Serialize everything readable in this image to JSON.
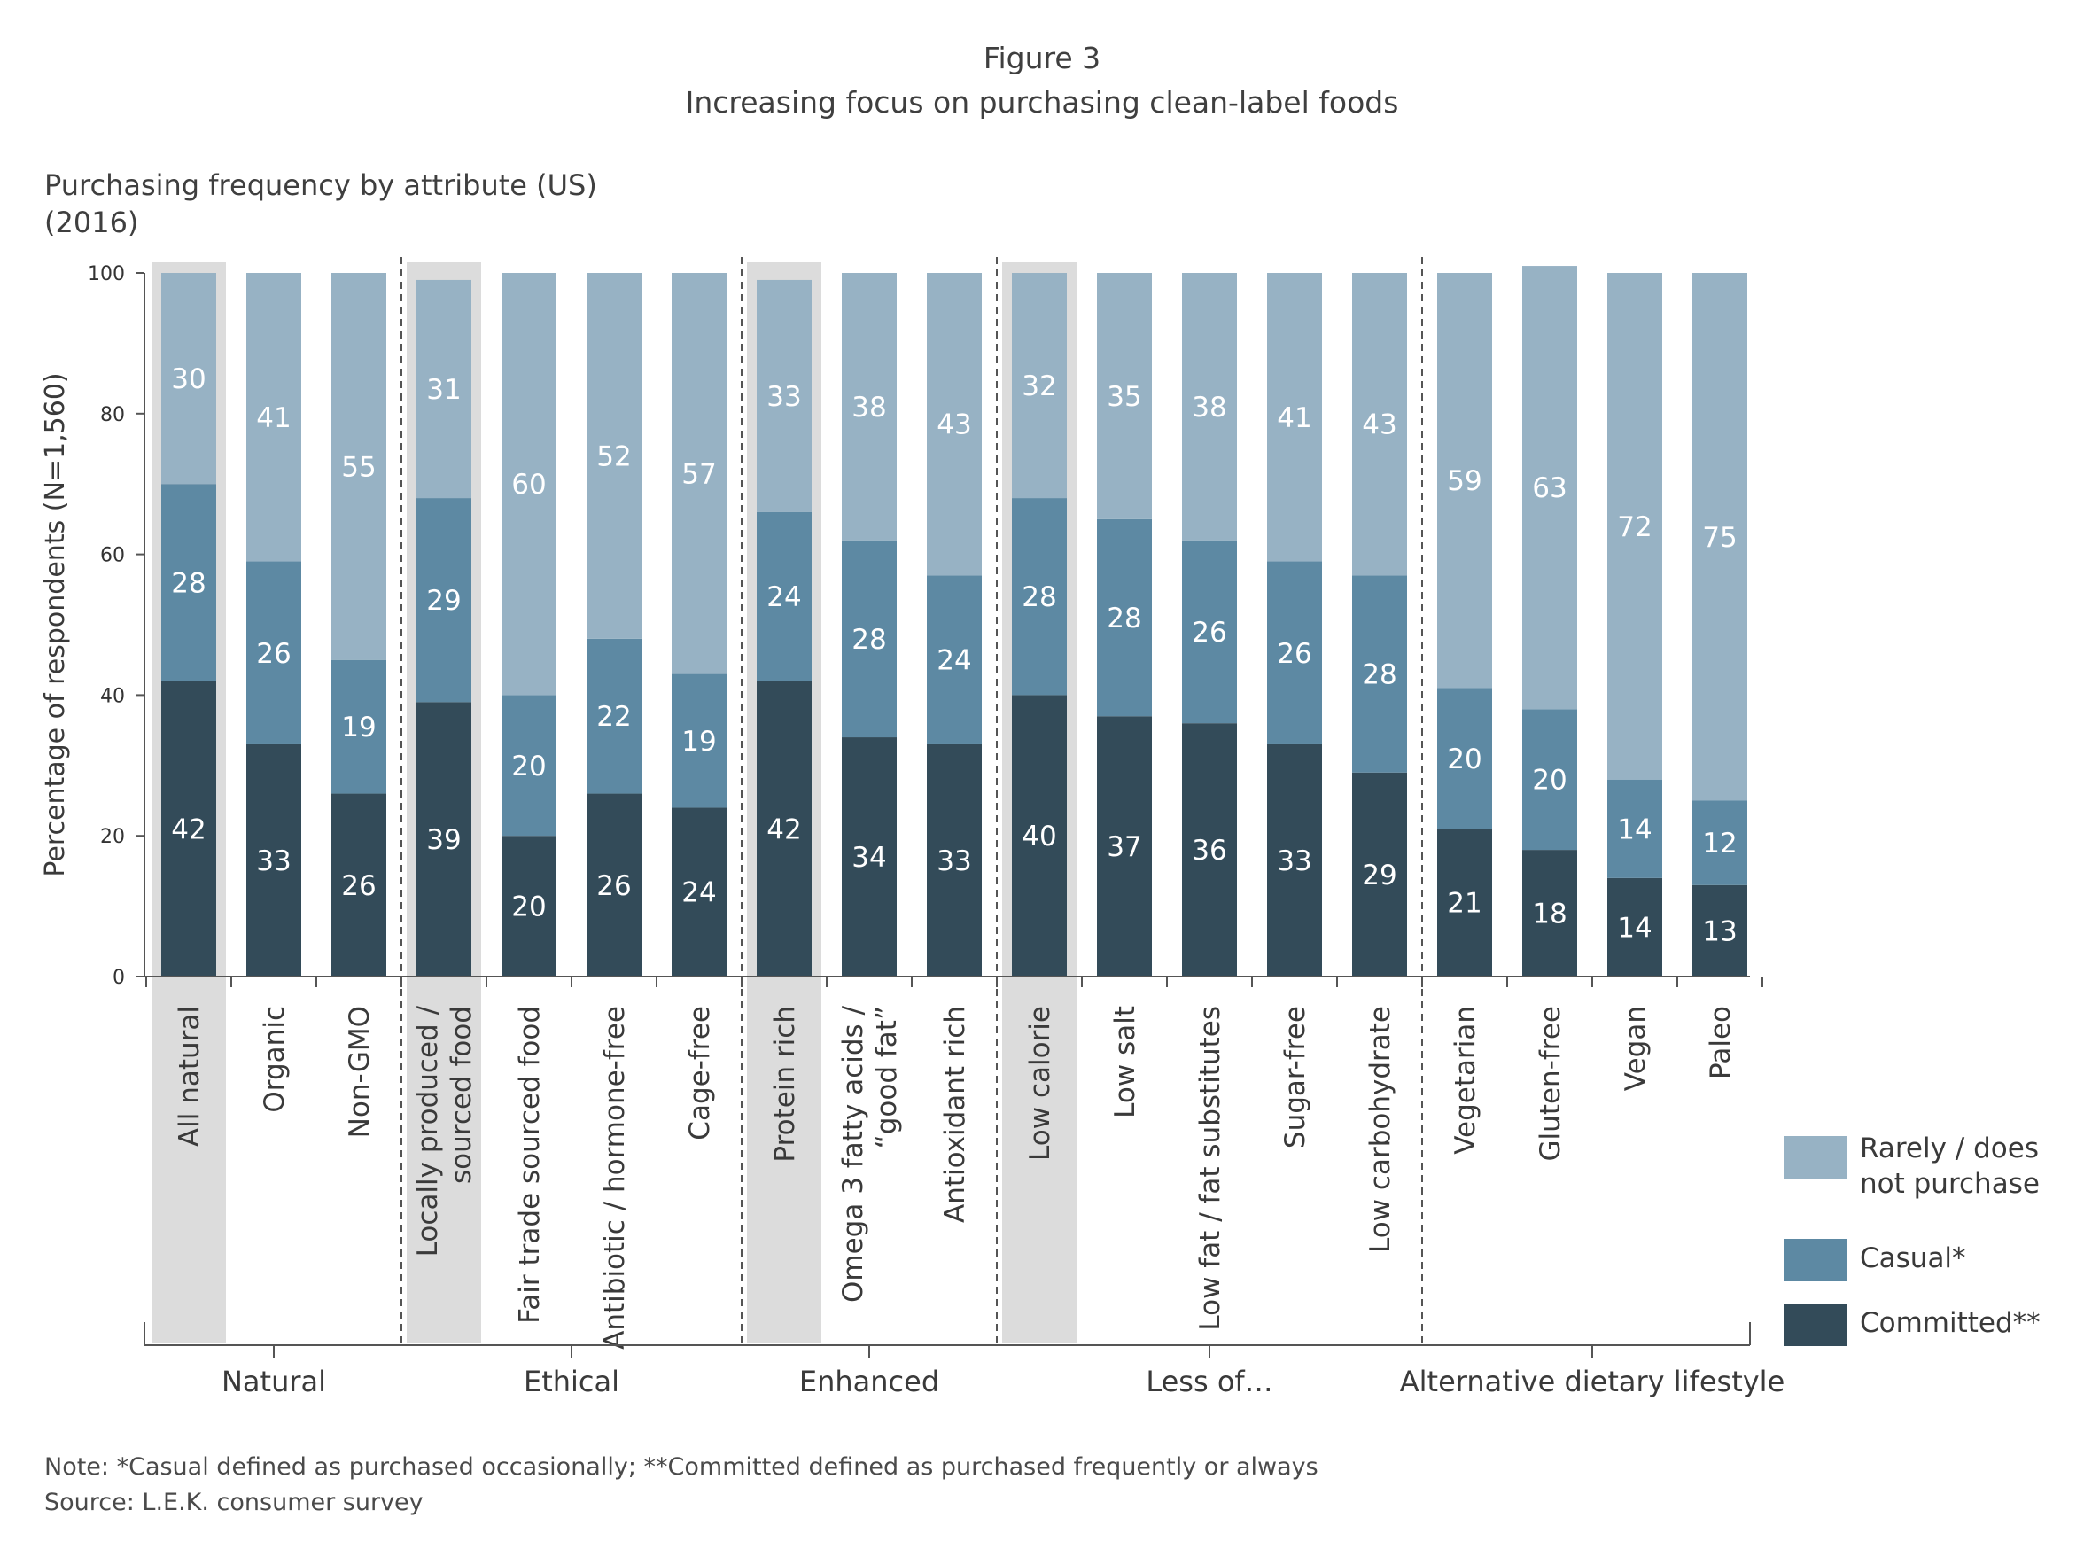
{
  "header": {
    "figure_label": "Figure 3",
    "title": "Increasing focus on purchasing clean-label foods",
    "subtitle_line1": "Purchasing frequency by attribute (US)",
    "subtitle_line2": "(2016)"
  },
  "footer": {
    "note": "Note: *Casual defined as purchased occasionally; **Committed defined as purchased frequently or always",
    "source": "Source: L.E.K. consumer survey"
  },
  "chart_data": {
    "type": "bar",
    "stacked": true,
    "ylabel": "Percentage of respondents (N=1,560)",
    "ylim": [
      0,
      100
    ],
    "yticks": [
      0,
      20,
      40,
      60,
      80,
      100
    ],
    "categories": [
      "All natural",
      "Organic",
      "Non-GMO",
      "Locally produced / sourced food",
      "Fair trade sourced food",
      "Antibiotic / hormone-free",
      "Cage-free",
      "Protein rich",
      "Omega 3 fatty acids / “good fat”",
      "Antioxidant rich",
      "Low calorie",
      "Low salt",
      "Low fat / fat substitutes",
      "Sugar-free",
      "Low carbohydrate",
      "Vegetarian",
      "Gluten-free",
      "Vegan",
      "Paleo"
    ],
    "category_lines": [
      [
        "All natural"
      ],
      [
        "Organic"
      ],
      [
        "Non-GMO"
      ],
      [
        "Locally produced /",
        "sourced food"
      ],
      [
        "Fair trade sourced food"
      ],
      [
        "Antibiotic / hormone-free"
      ],
      [
        "Cage-free"
      ],
      [
        "Protein rich"
      ],
      [
        "Omega 3 fatty acids /",
        "“good fat”"
      ],
      [
        "Antioxidant rich"
      ],
      [
        "Low calorie"
      ],
      [
        "Low salt"
      ],
      [
        "Low fat / fat substitutes"
      ],
      [
        "Sugar-free"
      ],
      [
        "Low carbohydrate"
      ],
      [
        "Vegetarian"
      ],
      [
        "Gluten-free"
      ],
      [
        "Vegan"
      ],
      [
        "Paleo"
      ]
    ],
    "highlighted": [
      "All natural",
      "Locally produced / sourced food",
      "Protein rich",
      "Low calorie"
    ],
    "series": [
      {
        "name": "Committed**",
        "color": "#334b59",
        "values": [
          42,
          33,
          26,
          39,
          20,
          26,
          24,
          42,
          34,
          33,
          40,
          37,
          36,
          33,
          29,
          21,
          18,
          14,
          13
        ]
      },
      {
        "name": "Casual*",
        "color": "#5d89a3",
        "values": [
          28,
          26,
          19,
          29,
          20,
          22,
          19,
          24,
          28,
          24,
          28,
          28,
          26,
          26,
          28,
          20,
          20,
          14,
          12
        ]
      },
      {
        "name": "Rarely / does not purchase",
        "legend_lines": [
          "Rarely / does",
          "not purchase"
        ],
        "color": "#97b2c4",
        "values": [
          30,
          41,
          55,
          31,
          60,
          52,
          57,
          33,
          38,
          43,
          32,
          35,
          38,
          41,
          43,
          59,
          63,
          72,
          75
        ]
      }
    ],
    "groups": [
      {
        "name": "Natural",
        "categories": [
          "All natural",
          "Organic",
          "Non-GMO"
        ]
      },
      {
        "name": "Ethical",
        "categories": [
          "Locally produced / sourced food",
          "Fair trade sourced food",
          "Antibiotic / hormone-free",
          "Cage-free"
        ]
      },
      {
        "name": "Enhanced",
        "categories": [
          "Protein rich",
          "Omega 3 fatty acids / “good fat”",
          "Antioxidant rich"
        ]
      },
      {
        "name": "Less of…",
        "categories": [
          "Low calorie",
          "Low salt",
          "Low fat / fat substitutes",
          "Sugar-free",
          "Low carbohydrate"
        ]
      },
      {
        "name": "Alternative dietary lifestyle",
        "categories": [
          "Vegetarian",
          "Gluten-free",
          "Vegan",
          "Paleo"
        ]
      }
    ],
    "legend_placement": "bottom-right",
    "colors": {
      "highlight": "#dcdcdc",
      "axis": "#555555"
    }
  }
}
